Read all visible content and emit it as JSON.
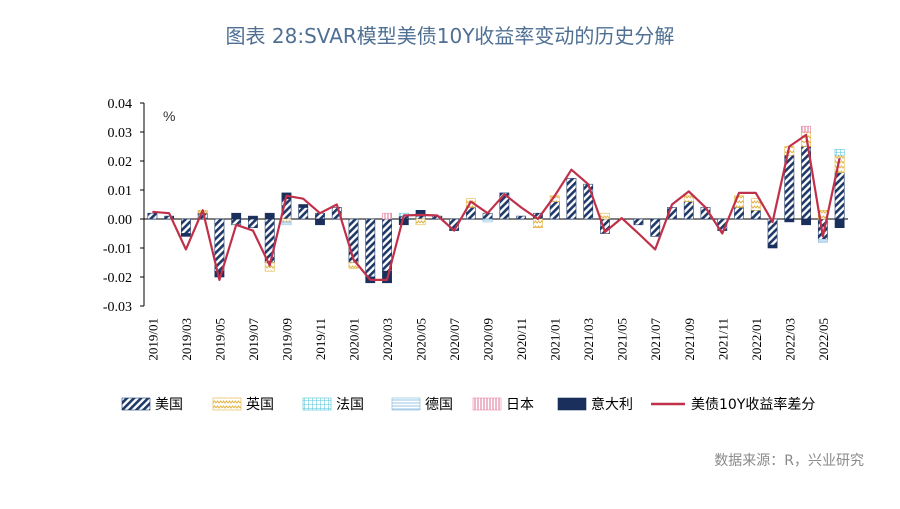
{
  "title": "图表 28:SVAR模型美债10Y收益率变动的历史分解",
  "source": "数据来源：R，兴业研究",
  "chart_data": {
    "type": "bar",
    "stacked": true,
    "unit_label": "%",
    "ylim": [
      -0.03,
      0.04
    ],
    "yticks": [
      "0.04",
      "0.03",
      "0.02",
      "0.01",
      "0.00",
      "-0.01",
      "-0.02",
      "-0.03"
    ],
    "ytick_values": [
      0.04,
      0.03,
      0.02,
      0.01,
      0.0,
      -0.01,
      -0.02,
      -0.03
    ],
    "categories": [
      "2019/01",
      "2019/02",
      "2019/03",
      "2019/04",
      "2019/05",
      "2019/06",
      "2019/07",
      "2019/08",
      "2019/09",
      "2019/10",
      "2019/11",
      "2019/12",
      "2020/01",
      "2020/02",
      "2020/03",
      "2020/04",
      "2020/05",
      "2020/06",
      "2020/07",
      "2020/08",
      "2020/09",
      "2020/10",
      "2020/11",
      "2020/12",
      "2021/01",
      "2021/02",
      "2021/03",
      "2021/04",
      "2021/05",
      "2021/06",
      "2021/07",
      "2021/08",
      "2021/09",
      "2021/10",
      "2021/11",
      "2021/12",
      "2022/01",
      "2022/02",
      "2022/03",
      "2022/04",
      "2022/05",
      "2022/06"
    ],
    "xtick_labels": [
      "2019/01",
      "2019/03",
      "2019/05",
      "2019/07",
      "2019/09",
      "2019/11",
      "2020/01",
      "2020/03",
      "2020/05",
      "2020/07",
      "2020/09",
      "2020/11",
      "2021/01",
      "2021/03",
      "2021/05",
      "2021/07",
      "2021/09",
      "2021/11",
      "2022/01",
      "2022/03",
      "2022/05"
    ],
    "legend_position": "bottom",
    "series": [
      {
        "name": "美国",
        "kind": "bar",
        "pattern": "diagonal-hatch",
        "color": "#1f3a68",
        "values": [
          0.002,
          0.001,
          -0.005,
          0.002,
          -0.018,
          -0.002,
          -0.003,
          -0.015,
          0.007,
          0.004,
          0.002,
          0.004,
          -0.015,
          -0.02,
          -0.018,
          0.001,
          0.001,
          0.001,
          -0.004,
          0.004,
          0.002,
          0.009,
          0.001,
          0.002,
          0.006,
          0.014,
          0.012,
          -0.005,
          0.0,
          -0.002,
          -0.006,
          0.004,
          0.006,
          0.004,
          -0.004,
          0.004,
          0.003,
          -0.009,
          0.022,
          0.025,
          -0.007,
          0.016
        ]
      },
      {
        "name": "英国",
        "kind": "bar",
        "pattern": "wave",
        "color": "#e3b444",
        "values": [
          0.0,
          0.0,
          0.0,
          0.001,
          0.0,
          0.0,
          0.0,
          -0.003,
          -0.001,
          0.0,
          0.0,
          0.0,
          -0.002,
          0.0,
          0.0,
          0.0,
          -0.002,
          0.0,
          0.0,
          0.003,
          0.0,
          0.0,
          0.0,
          -0.003,
          0.002,
          0.0,
          0.0,
          0.002,
          0.0,
          0.0,
          0.0,
          0.0,
          0.002,
          0.0,
          0.0,
          0.004,
          0.004,
          0.0,
          0.003,
          0.005,
          0.003,
          0.006
        ]
      },
      {
        "name": "法国",
        "kind": "bar",
        "pattern": "grid",
        "color": "#4fc3d9",
        "values": [
          0.0,
          0.0,
          0.0,
          0.0,
          0.0,
          0.0,
          0.0,
          0.0,
          0.0,
          0.0,
          0.0,
          0.0,
          0.0,
          0.0,
          0.0,
          0.001,
          0.0,
          0.0,
          0.0,
          0.0,
          0.0,
          0.0,
          0.0,
          0.0,
          0.0,
          0.0,
          0.0,
          0.0,
          0.0,
          0.0,
          0.0,
          0.0,
          0.0,
          0.0,
          0.0,
          0.0,
          0.0,
          0.0,
          0.0,
          0.0,
          0.0,
          0.002
        ]
      },
      {
        "name": "德国",
        "kind": "bar",
        "pattern": "hlines",
        "color": "#7fb6e0",
        "values": [
          0.0,
          0.0,
          0.0,
          0.0,
          0.0,
          0.0,
          0.0,
          0.0,
          -0.001,
          0.0,
          0.0,
          0.0,
          0.0,
          0.0,
          0.0,
          0.0,
          0.0,
          0.0,
          0.0,
          0.0,
          -0.001,
          0.0,
          0.0,
          0.0,
          0.0,
          0.0,
          0.0,
          0.0,
          0.0,
          0.0,
          0.0,
          0.0,
          0.0,
          0.0,
          0.0,
          0.0,
          0.0,
          0.0,
          0.0,
          0.0,
          -0.001,
          0.0
        ]
      },
      {
        "name": "日本",
        "kind": "bar",
        "pattern": "vlines",
        "color": "#e58aa6",
        "values": [
          0.0,
          0.0,
          0.0,
          0.0,
          0.0,
          0.0,
          0.0,
          0.0,
          0.0,
          0.0,
          0.0,
          0.0,
          0.0,
          0.0,
          0.002,
          0.0,
          0.0,
          0.0,
          0.0,
          0.0,
          0.0,
          0.0,
          0.0,
          0.0,
          0.0,
          0.0,
          0.0,
          0.0,
          0.0,
          0.0,
          0.0,
          0.0,
          0.0,
          0.0,
          0.0,
          0.0,
          0.0,
          0.0,
          0.0,
          0.002,
          0.0,
          0.0
        ]
      },
      {
        "name": "意大利",
        "kind": "bar",
        "pattern": "solid",
        "color": "#1a2f5c",
        "values": [
          0.0,
          0.0,
          -0.001,
          0.0,
          -0.002,
          0.002,
          0.001,
          0.002,
          0.002,
          0.001,
          -0.002,
          0.0,
          0.0,
          -0.002,
          -0.004,
          -0.002,
          0.002,
          0.0,
          0.0,
          0.0,
          0.0,
          0.0,
          0.0,
          0.0,
          0.0,
          0.0,
          0.0,
          0.0,
          0.0,
          0.0,
          0.0,
          0.0,
          0.0,
          0.0,
          0.0,
          0.0,
          0.0,
          -0.001,
          -0.001,
          -0.002,
          0.0,
          -0.003
        ]
      },
      {
        "name": "美债10Y收益率差分",
        "kind": "line",
        "color": "#c0304a",
        "values": [
          0.0025,
          0.002,
          -0.0105,
          0.003,
          -0.021,
          -0.002,
          -0.004,
          -0.016,
          0.008,
          0.007,
          0.002,
          0.005,
          -0.014,
          -0.021,
          -0.021,
          0.0012,
          0.0014,
          0.0012,
          -0.004,
          0.006,
          0.002,
          0.0085,
          0.004,
          0.0,
          0.008,
          0.017,
          0.012,
          -0.0045,
          0.0003,
          -0.005,
          -0.0105,
          0.005,
          0.0095,
          0.004,
          -0.005,
          0.009,
          0.009,
          -0.001,
          0.025,
          0.029,
          -0.006,
          0.021
        ]
      }
    ]
  }
}
